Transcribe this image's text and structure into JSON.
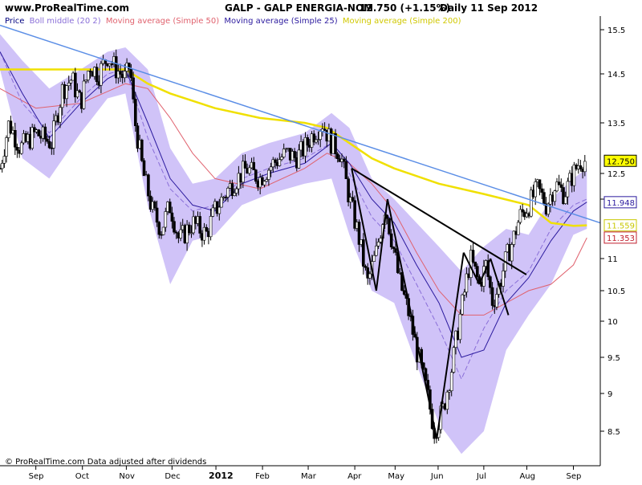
{
  "header": {
    "site": "www.ProRealTime.com",
    "symbol": "GALP - GALP ENERGIA-NOM",
    "price": "12.750 (+1.15%)",
    "period": "Daily  11 Sep 2012"
  },
  "legend": [
    {
      "text": "Price",
      "color": "#000080"
    },
    {
      "text": "Boll middle (20 2)",
      "color": "#8a6fd8"
    },
    {
      "text": "Moving average (Simple 50)",
      "color": "#e0626e"
    },
    {
      "text": "Moving average (Simple 25)",
      "color": "#2b1a9e"
    },
    {
      "text": "Moving average (Simple 200)",
      "color": "#e8e800"
    }
  ],
  "footer": "© ProRealTime.com  Data adjusted after dividends",
  "value_boxes": [
    {
      "label": "12.750",
      "value": 12.75,
      "color": "#000000",
      "bg": "#ffff00"
    },
    {
      "label": "11.948",
      "value": 11.948,
      "color": "#2b1a9e",
      "bg": "#ffffff"
    },
    {
      "label": "11.559",
      "value": 11.559,
      "color": "#c8c800",
      "bg": "#ffffff"
    },
    {
      "label": "11.353",
      "value": 11.353,
      "color": "#c0202e",
      "bg": "#ffffff"
    }
  ],
  "colors": {
    "band": "#cbbcf7",
    "candle": "#000000",
    "trendline": "#5b8ee6",
    "ma200": "#f0e000",
    "ma50": "#e0626e",
    "ma25": "#2b1a9e",
    "boll_mid": "#8a6fd8"
  },
  "chart_data": {
    "type": "line",
    "title": "GALP - GALP ENERGIA-NOM",
    "xlabel": "",
    "ylabel": "",
    "ylim": [
      8.2,
      15.7
    ],
    "y_scale": "log",
    "y_ticks": [
      "15.5",
      "14.5",
      "13.5",
      "12.5",
      "12",
      "11",
      "10.5",
      "10",
      "9.5",
      "9",
      "8.5"
    ],
    "x_ticks": [
      "Sep",
      "Oct",
      "Nov",
      "Dec",
      "2012",
      "Feb",
      "Mar",
      "Apr",
      "May",
      "Jun",
      "Jul",
      "Aug",
      "Sep"
    ],
    "x_tick_values": [
      0.0,
      1.04,
      2.02,
      3.04,
      4.02,
      5.06,
      6.08,
      7.12,
      8.02,
      8.98,
      10.0,
      10.96,
      12.0
    ],
    "xlim": [
      -0.8,
      12.6
    ],
    "series": [
      {
        "name": "Price",
        "x": [
          -0.8,
          -0.6,
          -0.35,
          0.0,
          0.35,
          0.6,
          0.8,
          1.0,
          1.2,
          1.4,
          1.6,
          1.8,
          2.0,
          2.1,
          2.2,
          2.4,
          2.6,
          2.8,
          3.0,
          3.2,
          3.5,
          3.8,
          4.0,
          4.3,
          4.7,
          5.0,
          5.3,
          5.6,
          5.8,
          6.0,
          6.2,
          6.4,
          6.6,
          6.8,
          7.0,
          7.2,
          7.4,
          7.6,
          7.8,
          7.95,
          8.1,
          8.3,
          8.5,
          8.7,
          8.9,
          9.1,
          9.3,
          9.5,
          9.7,
          9.9,
          10.05,
          10.2,
          10.35,
          10.5,
          10.65,
          10.8,
          11.0,
          11.2,
          11.4,
          11.6,
          11.8,
          12.0,
          12.15,
          12.3
        ],
        "values": [
          12.6,
          13.5,
          13.0,
          13.3,
          13.1,
          14.2,
          14.4,
          13.9,
          14.7,
          14.5,
          14.9,
          14.6,
          14.4,
          14.7,
          13.6,
          12.5,
          11.8,
          11.5,
          11.9,
          11.3,
          11.6,
          11.4,
          11.8,
          12.2,
          12.6,
          12.4,
          12.7,
          12.9,
          12.8,
          13.0,
          13.3,
          13.5,
          13.1,
          12.9,
          12.0,
          11.4,
          10.6,
          11.1,
          11.9,
          11.3,
          10.7,
          10.2,
          9.6,
          9.1,
          8.5,
          8.8,
          9.4,
          10.2,
          11.0,
          10.6,
          10.9,
          10.3,
          10.6,
          11.0,
          11.3,
          11.7,
          11.9,
          12.2,
          11.9,
          12.3,
          12.1,
          12.5,
          12.75,
          12.75
        ]
      },
      {
        "name": "Moving average (Simple 200)",
        "x": [
          -0.8,
          0.0,
          1.0,
          2.0,
          2.5,
          3.0,
          4.0,
          5.0,
          6.0,
          6.5,
          7.0,
          7.5,
          8.0,
          9.0,
          10.0,
          11.0,
          11.5,
          12.0,
          12.3
        ],
        "values": [
          14.6,
          14.6,
          14.6,
          14.6,
          14.3,
          14.1,
          13.8,
          13.6,
          13.5,
          13.4,
          13.1,
          12.8,
          12.6,
          12.3,
          12.1,
          11.9,
          11.6,
          11.55,
          11.56
        ]
      },
      {
        "name": "Moving average (Simple 50)",
        "x": [
          -0.8,
          0.0,
          1.0,
          2.0,
          2.5,
          3.0,
          3.5,
          4.0,
          5.0,
          6.0,
          6.5,
          7.0,
          7.5,
          8.0,
          8.5,
          9.0,
          9.5,
          10.0,
          10.5,
          11.0,
          11.5,
          12.0,
          12.3
        ],
        "values": [
          14.2,
          13.8,
          13.9,
          14.3,
          14.2,
          13.6,
          12.9,
          12.4,
          12.2,
          12.6,
          12.9,
          12.7,
          12.3,
          11.8,
          11.1,
          10.5,
          10.1,
          10.1,
          10.3,
          10.5,
          10.6,
          10.9,
          11.35
        ]
      },
      {
        "name": "Moving average (Simple 25)",
        "x": [
          -0.8,
          -0.3,
          0.3,
          1.0,
          1.6,
          2.0,
          2.5,
          3.0,
          3.5,
          4.0,
          4.6,
          5.2,
          6.0,
          6.6,
          7.0,
          7.5,
          8.0,
          8.5,
          9.0,
          9.5,
          10.0,
          10.5,
          11.0,
          11.5,
          12.0,
          12.3
        ],
        "values": [
          15.0,
          14.1,
          13.2,
          13.9,
          14.4,
          14.6,
          13.5,
          12.4,
          11.9,
          11.8,
          12.3,
          12.5,
          12.7,
          13.1,
          12.7,
          12.0,
          11.6,
          10.9,
          10.3,
          9.5,
          9.6,
          10.3,
          10.7,
          11.3,
          11.8,
          11.95
        ]
      },
      {
        "name": "Boll middle (20 2)",
        "x": [
          -0.8,
          -0.3,
          0.3,
          1.0,
          1.6,
          2.0,
          2.5,
          3.0,
          3.5,
          4.0,
          4.6,
          5.2,
          6.0,
          6.6,
          7.0,
          7.5,
          8.0,
          8.5,
          9.0,
          9.5,
          10.0,
          10.5,
          11.0,
          11.5,
          12.0,
          12.3
        ],
        "values": [
          15.0,
          13.9,
          13.3,
          14.0,
          14.5,
          14.6,
          13.2,
          12.2,
          11.8,
          11.9,
          12.4,
          12.6,
          12.8,
          13.1,
          12.5,
          11.7,
          11.3,
          10.6,
          9.9,
          9.2,
          9.9,
          10.5,
          10.8,
          11.5,
          11.9,
          12.0
        ]
      },
      {
        "name": "Bollinger upper",
        "x": [
          -0.8,
          -0.3,
          0.3,
          1.0,
          1.6,
          2.0,
          2.5,
          3.0,
          3.5,
          4.0,
          4.6,
          5.2,
          6.0,
          6.6,
          7.0,
          7.5,
          8.0,
          8.5,
          9.0,
          9.5,
          10.0,
          10.5,
          11.0,
          11.5,
          12.0,
          12.3
        ],
        "values": [
          15.4,
          14.8,
          14.2,
          14.6,
          15.0,
          15.1,
          14.6,
          13.0,
          12.3,
          12.4,
          12.9,
          13.1,
          13.3,
          13.7,
          13.4,
          12.4,
          12.0,
          11.6,
          11.2,
          10.8,
          11.2,
          11.5,
          11.4,
          12.0,
          12.4,
          12.6
        ]
      },
      {
        "name": "Bollinger lower",
        "x": [
          -0.8,
          -0.3,
          0.3,
          1.0,
          1.6,
          2.0,
          2.5,
          3.0,
          3.5,
          4.0,
          4.6,
          5.2,
          6.0,
          6.6,
          7.0,
          7.5,
          8.0,
          8.5,
          9.0,
          9.5,
          10.0,
          10.5,
          11.0,
          11.5,
          12.0,
          12.3
        ],
        "values": [
          14.6,
          12.8,
          12.4,
          13.3,
          14.0,
          14.1,
          11.9,
          10.6,
          11.3,
          11.4,
          11.9,
          12.1,
          12.3,
          12.4,
          11.4,
          10.5,
          10.3,
          9.4,
          8.6,
          8.2,
          8.5,
          9.6,
          10.1,
          10.6,
          11.4,
          11.5
        ]
      },
      {
        "name": "Trendline",
        "x": [
          -0.8,
          12.6
        ],
        "values": [
          15.6,
          11.6
        ]
      },
      {
        "name": "Pattern lines",
        "segments": [
          {
            "x": [
              7.05,
              7.6
            ],
            "values": [
              12.6,
              10.5
            ]
          },
          {
            "x": [
              7.6,
              7.85
            ],
            "values": [
              10.5,
              12.0
            ]
          },
          {
            "x": [
              7.85,
              8.95
            ],
            "values": [
              12.0,
              8.4
            ]
          },
          {
            "x": [
              8.95,
              9.55
            ],
            "values": [
              8.4,
              11.1
            ]
          },
          {
            "x": [
              9.55,
              9.9
            ],
            "values": [
              11.1,
              10.6
            ]
          },
          {
            "x": [
              9.9,
              10.15
            ],
            "values": [
              10.6,
              11.0
            ]
          },
          {
            "x": [
              10.15,
              10.55
            ],
            "values": [
              11.0,
              10.1
            ]
          },
          {
            "x": [
              7.05,
              10.95
            ],
            "values": [
              12.6,
              10.75
            ]
          }
        ]
      }
    ]
  }
}
